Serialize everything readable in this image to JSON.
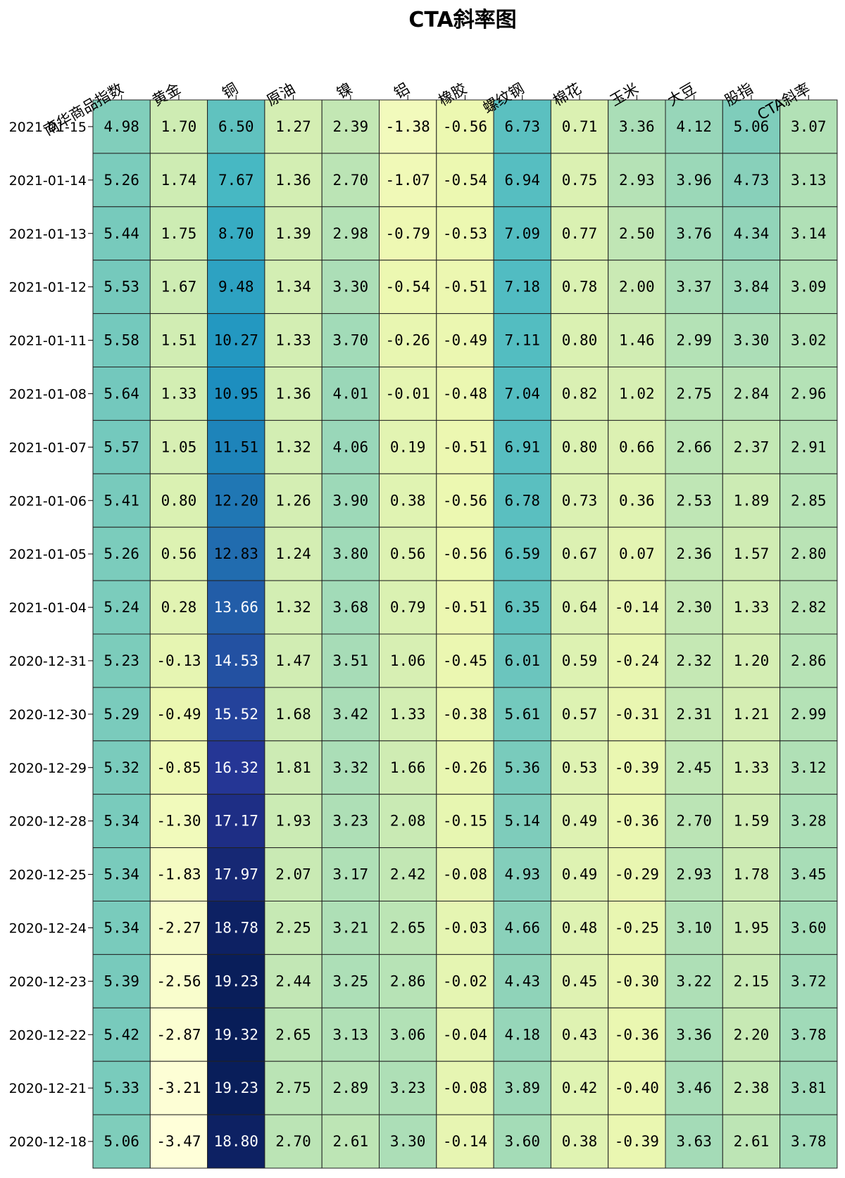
{
  "chart_data": {
    "type": "heatmap",
    "title": "CTA斜率图",
    "colormap": "YlGnBu",
    "columns": [
      "南华商品指数",
      "黄金",
      "铜",
      "原油",
      "镍",
      "铝",
      "橡胶",
      "螺纹钢",
      "棉花",
      "玉米",
      "大豆",
      "股指",
      "CTA斜率"
    ],
    "rows": [
      "2021-01-15",
      "2021-01-14",
      "2021-01-13",
      "2021-01-12",
      "2021-01-11",
      "2021-01-08",
      "2021-01-07",
      "2021-01-06",
      "2021-01-05",
      "2021-01-04",
      "2020-12-31",
      "2020-12-30",
      "2020-12-29",
      "2020-12-28",
      "2020-12-25",
      "2020-12-24",
      "2020-12-23",
      "2020-12-22",
      "2020-12-21",
      "2020-12-18"
    ],
    "values": [
      [
        "4.98",
        "1.70",
        "6.50",
        "1.27",
        "2.39",
        "-1.38",
        "-0.56",
        "6.73",
        "0.71",
        "3.36",
        "4.12",
        "5.06",
        "3.07"
      ],
      [
        "5.26",
        "1.74",
        "7.67",
        "1.36",
        "2.70",
        "-1.07",
        "-0.54",
        "6.94",
        "0.75",
        "2.93",
        "3.96",
        "4.73",
        "3.13"
      ],
      [
        "5.44",
        "1.75",
        "8.70",
        "1.39",
        "2.98",
        "-0.79",
        "-0.53",
        "7.09",
        "0.77",
        "2.50",
        "3.76",
        "4.34",
        "3.14"
      ],
      [
        "5.53",
        "1.67",
        "9.48",
        "1.34",
        "3.30",
        "-0.54",
        "-0.51",
        "7.18",
        "0.78",
        "2.00",
        "3.37",
        "3.84",
        "3.09"
      ],
      [
        "5.58",
        "1.51",
        "10.27",
        "1.33",
        "3.70",
        "-0.26",
        "-0.49",
        "7.11",
        "0.80",
        "1.46",
        "2.99",
        "3.30",
        "3.02"
      ],
      [
        "5.64",
        "1.33",
        "10.95",
        "1.36",
        "4.01",
        "-0.01",
        "-0.48",
        "7.04",
        "0.82",
        "1.02",
        "2.75",
        "2.84",
        "2.96"
      ],
      [
        "5.57",
        "1.05",
        "11.51",
        "1.32",
        "4.06",
        "0.19",
        "-0.51",
        "6.91",
        "0.80",
        "0.66",
        "2.66",
        "2.37",
        "2.91"
      ],
      [
        "5.41",
        "0.80",
        "12.20",
        "1.26",
        "3.90",
        "0.38",
        "-0.56",
        "6.78",
        "0.73",
        "0.36",
        "2.53",
        "1.89",
        "2.85"
      ],
      [
        "5.26",
        "0.56",
        "12.83",
        "1.24",
        "3.80",
        "0.56",
        "-0.56",
        "6.59",
        "0.67",
        "0.07",
        "2.36",
        "1.57",
        "2.80"
      ],
      [
        "5.24",
        "0.28",
        "13.66",
        "1.32",
        "3.68",
        "0.79",
        "-0.51",
        "6.35",
        "0.64",
        "-0.14",
        "2.30",
        "1.33",
        "2.82"
      ],
      [
        "5.23",
        "-0.13",
        "14.53",
        "1.47",
        "3.51",
        "1.06",
        "-0.45",
        "6.01",
        "0.59",
        "-0.24",
        "2.32",
        "1.20",
        "2.86"
      ],
      [
        "5.29",
        "-0.49",
        "15.52",
        "1.68",
        "3.42",
        "1.33",
        "-0.38",
        "5.61",
        "0.57",
        "-0.31",
        "2.31",
        "1.21",
        "2.99"
      ],
      [
        "5.32",
        "-0.85",
        "16.32",
        "1.81",
        "3.32",
        "1.66",
        "-0.26",
        "5.36",
        "0.53",
        "-0.39",
        "2.45",
        "1.33",
        "3.12"
      ],
      [
        "5.34",
        "-1.30",
        "17.17",
        "1.93",
        "3.23",
        "2.08",
        "-0.15",
        "5.14",
        "0.49",
        "-0.36",
        "2.70",
        "1.59",
        "3.28"
      ],
      [
        "5.34",
        "-1.83",
        "17.97",
        "2.07",
        "3.17",
        "2.42",
        "-0.08",
        "4.93",
        "0.49",
        "-0.29",
        "2.93",
        "1.78",
        "3.45"
      ],
      [
        "5.34",
        "-2.27",
        "18.78",
        "2.25",
        "3.21",
        "2.65",
        "-0.03",
        "4.66",
        "0.48",
        "-0.25",
        "3.10",
        "1.95",
        "3.60"
      ],
      [
        "5.39",
        "-2.56",
        "19.23",
        "2.44",
        "3.25",
        "2.86",
        "-0.02",
        "4.43",
        "0.45",
        "-0.30",
        "3.22",
        "2.15",
        "3.72"
      ],
      [
        "5.42",
        "-2.87",
        "19.32",
        "2.65",
        "3.13",
        "3.06",
        "-0.04",
        "4.18",
        "0.43",
        "-0.36",
        "3.36",
        "2.20",
        "3.78"
      ],
      [
        "5.33",
        "-3.21",
        "19.23",
        "2.75",
        "2.89",
        "3.23",
        "-0.08",
        "3.89",
        "0.42",
        "-0.40",
        "3.46",
        "2.38",
        "3.81"
      ],
      [
        "5.06",
        "-3.47",
        "18.80",
        "2.70",
        "2.61",
        "3.30",
        "-0.14",
        "3.60",
        "0.38",
        "-0.39",
        "3.63",
        "2.61",
        "3.78"
      ]
    ],
    "legend": "none",
    "grid": false
  }
}
